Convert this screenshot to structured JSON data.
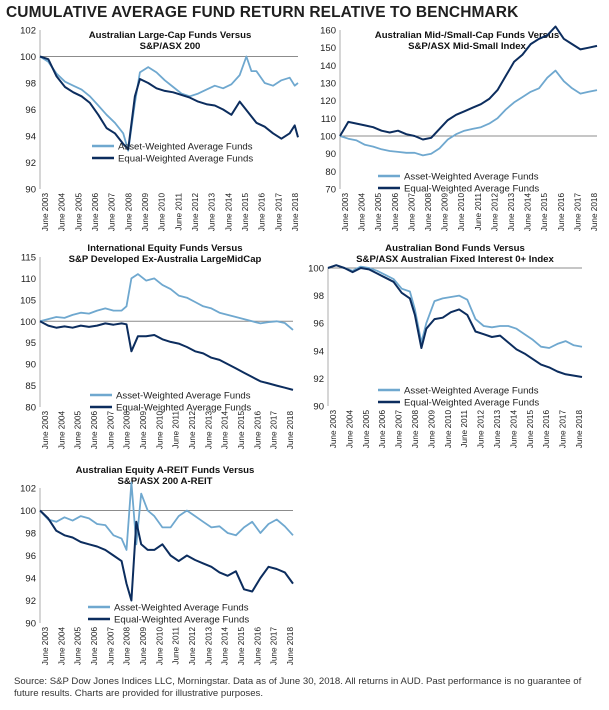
{
  "title": "CUMULATIVE AVERAGE FUND RETURN RELATIVE TO BENCHMARK",
  "footnote": "Source: S&P Dow Jones Indices LLC, Morningstar.  Data as of June 30, 2018.  All returns in AUD.  Past performance is no guarantee of future results.  Charts are provided for illustrative purposes.",
  "colors": {
    "asset": "#6fa8cf",
    "equal": "#0c2d5e",
    "baseline": "#8c8c8c"
  },
  "chart_data": [
    {
      "type": "line",
      "title_lines": [
        "Australian Large-Cap Funds Versus",
        "S&P/ASX 200"
      ],
      "ylim": [
        90,
        102
      ],
      "yticks": [
        90,
        92,
        94,
        96,
        98,
        100,
        102
      ],
      "baseline": 100,
      "xlim": [
        2003,
        2018.5
      ],
      "xticks": [
        "June 2003",
        "June 2004",
        "June 2005",
        "June 2006",
        "June 2007",
        "June 2008",
        "June 2009",
        "June 2010",
        "June 2011",
        "June 2012",
        "June 2013",
        "June 2014",
        "June 2015",
        "June 2016",
        "June 2017",
        "June 2018"
      ],
      "legend": "bottom-left",
      "series": [
        {
          "name": "Asset-Weighted Average Funds",
          "color_key": "asset",
          "x": [
            2003,
            2003.5,
            2004,
            2004.5,
            2005,
            2005.5,
            2006,
            2006.5,
            2007,
            2007.5,
            2008,
            2008.3,
            2008.7,
            2009,
            2009.5,
            2010,
            2010.5,
            2011,
            2011.5,
            2012,
            2012.5,
            2013,
            2013.5,
            2014,
            2014.5,
            2015,
            2015.4,
            2015.7,
            2016,
            2016.5,
            2017,
            2017.5,
            2018,
            2018.3,
            2018.5
          ],
          "y": [
            100,
            99.6,
            98.7,
            98.1,
            97.8,
            97.5,
            97.0,
            96.3,
            95.6,
            95.0,
            94.2,
            92.9,
            96.5,
            98.8,
            99.2,
            98.8,
            98.2,
            97.7,
            97.2,
            97.0,
            97.2,
            97.5,
            97.8,
            97.6,
            97.9,
            98.6,
            100.0,
            98.9,
            98.9,
            98.0,
            97.8,
            98.2,
            98.4,
            97.8,
            98.0
          ]
        },
        {
          "name": "Equal-Weighted Average Funds",
          "color_key": "equal",
          "x": [
            2003,
            2003.5,
            2004,
            2004.5,
            2005,
            2005.5,
            2006,
            2006.5,
            2007,
            2007.5,
            2008,
            2008.3,
            2008.7,
            2009,
            2009.5,
            2010,
            2010.5,
            2011,
            2011.5,
            2012,
            2012.5,
            2013,
            2013.5,
            2014,
            2014.5,
            2015,
            2015.5,
            2016,
            2016.5,
            2017,
            2017.5,
            2018,
            2018.3,
            2018.5
          ],
          "y": [
            100,
            99.8,
            98.5,
            97.7,
            97.3,
            97.0,
            96.5,
            95.6,
            94.6,
            94.2,
            93.4,
            93.0,
            97.0,
            98.3,
            98.0,
            97.6,
            97.4,
            97.3,
            97.1,
            96.9,
            96.6,
            96.4,
            96.3,
            96.0,
            95.6,
            96.6,
            95.8,
            95.0,
            94.7,
            94.2,
            93.8,
            94.2,
            94.8,
            93.9
          ]
        }
      ]
    },
    {
      "type": "line",
      "title_lines": [
        "Australian Mid-/Small-Cap Funds Versus",
        "S&P/ASX Mid-Small Index"
      ],
      "ylim": [
        70,
        160
      ],
      "yticks": [
        70,
        80,
        90,
        100,
        110,
        120,
        130,
        140,
        150,
        160
      ],
      "baseline": 100,
      "xlim": [
        2003,
        2018.5
      ],
      "xticks": [
        "June 2003",
        "June 2004",
        "June 2005",
        "June 2006",
        "June 2007",
        "June 2008",
        "June 2009",
        "June 2010",
        "June 2011",
        "June 2012",
        "June 2013",
        "June 2014",
        "June 2015",
        "June 2016",
        "June 2017",
        "June 2018"
      ],
      "legend": "bottom-center",
      "series": [
        {
          "name": "Asset-Weighted Average Funds",
          "color_key": "asset",
          "x": [
            2003,
            2003.5,
            2004,
            2004.5,
            2005,
            2005.5,
            2006,
            2006.5,
            2007,
            2007.5,
            2008,
            2008.5,
            2009,
            2009.5,
            2010,
            2010.5,
            2011,
            2011.5,
            2012,
            2012.5,
            2013,
            2013.5,
            2014,
            2014.5,
            2015,
            2015.5,
            2016,
            2016.5,
            2017,
            2017.5,
            2018,
            2018.5
          ],
          "y": [
            100,
            98.5,
            97.5,
            95,
            94,
            92.5,
            91.5,
            91,
            90.5,
            90.5,
            89,
            90,
            93,
            98,
            101,
            103,
            104,
            105,
            107,
            110,
            115,
            119,
            122,
            125,
            127,
            133,
            137,
            131,
            127,
            124,
            125,
            126
          ]
        },
        {
          "name": "Equal-Weighted Average Funds",
          "color_key": "equal",
          "x": [
            2003,
            2003.5,
            2004,
            2004.5,
            2005,
            2005.5,
            2006,
            2006.5,
            2007,
            2007.5,
            2008,
            2008.5,
            2009,
            2009.5,
            2010,
            2010.5,
            2011,
            2011.5,
            2012,
            2012.5,
            2013,
            2013.5,
            2014,
            2014.5,
            2015,
            2015.5,
            2016,
            2016.5,
            2017,
            2017.5,
            2018,
            2018.5
          ],
          "y": [
            100,
            108,
            107,
            106,
            105,
            103,
            102,
            103,
            101,
            100,
            98,
            99,
            104,
            109,
            112,
            114,
            116,
            118,
            121,
            126,
            134,
            142,
            146,
            152,
            155,
            157,
            162,
            155,
            152,
            149,
            150,
            151
          ]
        }
      ]
    },
    {
      "type": "line",
      "title_lines": [
        "International Equity Funds Versus",
        "S&P Developed Ex-Australia LargeMidCap"
      ],
      "ylim": [
        80,
        115
      ],
      "yticks": [
        80,
        85,
        90,
        95,
        100,
        105,
        110,
        115
      ],
      "baseline": 100,
      "xlim": [
        2003,
        2018.5
      ],
      "xticks": [
        "June 2003",
        "June 2004",
        "June 2005",
        "June 2006",
        "June 2007",
        "June 2008",
        "June 2009",
        "June 2010",
        "June 2011",
        "June 2012",
        "June 2013",
        "June 2014",
        "June 2015",
        "June 2016",
        "June 2017",
        "June 2018"
      ],
      "legend": "bottom-center",
      "series": [
        {
          "name": "Asset-Weighted Average Funds",
          "color_key": "asset",
          "x": [
            2003,
            2003.5,
            2004,
            2004.5,
            2005,
            2005.5,
            2006,
            2006.5,
            2007,
            2007.5,
            2008,
            2008.3,
            2008.6,
            2009,
            2009.5,
            2010,
            2010.5,
            2011,
            2011.5,
            2012,
            2012.5,
            2013,
            2013.5,
            2014,
            2014.5,
            2015,
            2015.5,
            2016,
            2016.5,
            2017,
            2017.5,
            2018,
            2018.5
          ],
          "y": [
            100,
            100.5,
            101,
            100.8,
            101.5,
            102,
            101.8,
            102.5,
            103,
            102.5,
            102.5,
            103.5,
            110,
            111,
            109.5,
            110,
            108.5,
            107.5,
            106,
            105.5,
            104.5,
            103.5,
            103,
            102,
            101.5,
            101,
            100.5,
            100,
            99.5,
            99.8,
            100,
            99.6,
            98
          ]
        },
        {
          "name": "Equal-Weighted Average Funds",
          "color_key": "equal",
          "x": [
            2003,
            2003.5,
            2004,
            2004.5,
            2005,
            2005.5,
            2006,
            2006.5,
            2007,
            2007.5,
            2008,
            2008.3,
            2008.6,
            2009,
            2009.5,
            2010,
            2010.5,
            2011,
            2011.5,
            2012,
            2012.5,
            2013,
            2013.5,
            2014,
            2014.5,
            2015,
            2015.5,
            2016,
            2016.5,
            2017,
            2017.5,
            2018,
            2018.5
          ],
          "y": [
            100,
            99,
            98.5,
            98.8,
            98.5,
            99,
            98.7,
            99,
            99.5,
            99.2,
            99.5,
            99.3,
            93,
            96.5,
            96.5,
            96.8,
            95.8,
            95.2,
            94.8,
            94,
            93,
            92.5,
            91.5,
            91,
            90,
            89,
            88,
            87,
            86,
            85.5,
            85,
            84.5,
            84
          ]
        }
      ]
    },
    {
      "type": "line",
      "title_lines": [
        "Australian Bond Funds Versus",
        "S&P/ASX Australian Fixed Interest 0+ Index"
      ],
      "ylim": [
        90,
        100
      ],
      "yticks": [
        90,
        92,
        94,
        96,
        98,
        100
      ],
      "baseline": 100,
      "xlim": [
        2003,
        2018.5
      ],
      "xticks": [
        "June 2003",
        "June 2004",
        "June 2005",
        "June 2006",
        "June 2007",
        "June 2008",
        "June 2009",
        "June 2010",
        "June 2011",
        "June 2012",
        "June 2013",
        "June 2014",
        "June 2015",
        "June 2016",
        "June 2017",
        "June 2018"
      ],
      "legend": "bottom-right",
      "series": [
        {
          "name": "Asset-Weighted Average Funds",
          "color_key": "asset",
          "x": [
            2003,
            2003.5,
            2004,
            2004.5,
            2005,
            2005.5,
            2006,
            2006.5,
            2007,
            2007.5,
            2008,
            2008.3,
            2008.7,
            2009,
            2009.5,
            2010,
            2010.5,
            2011,
            2011.5,
            2012,
            2012.5,
            2013,
            2013.5,
            2014,
            2014.5,
            2015,
            2015.5,
            2016,
            2016.5,
            2017,
            2017.5,
            2018,
            2018.5
          ],
          "y": [
            100,
            100.2,
            100,
            99.8,
            100.1,
            100,
            99.8,
            99.5,
            99.2,
            98.5,
            98.3,
            97.0,
            94.6,
            96,
            97.6,
            97.8,
            97.9,
            98,
            97.7,
            96.3,
            95.8,
            95.7,
            95.8,
            95.8,
            95.6,
            95.2,
            94.8,
            94.3,
            94.2,
            94.5,
            94.7,
            94.4,
            94.3
          ]
        },
        {
          "name": "Equal-Weighted Average Funds",
          "color_key": "equal",
          "x": [
            2003,
            2003.5,
            2004,
            2004.5,
            2005,
            2005.5,
            2006,
            2006.5,
            2007,
            2007.5,
            2008,
            2008.3,
            2008.7,
            2009,
            2009.5,
            2010,
            2010.5,
            2011,
            2011.5,
            2012,
            2012.5,
            2013,
            2013.5,
            2014,
            2014.5,
            2015,
            2015.5,
            2016,
            2016.5,
            2017,
            2017.5,
            2018,
            2018.5
          ],
          "y": [
            100,
            100.2,
            100,
            99.7,
            100,
            99.9,
            99.6,
            99.3,
            99,
            98.2,
            97.8,
            96.6,
            94.2,
            95.6,
            96.3,
            96.4,
            96.8,
            97,
            96.6,
            95.4,
            95.2,
            95,
            95.1,
            94.6,
            94.1,
            93.8,
            93.4,
            93,
            92.8,
            92.5,
            92.3,
            92.2,
            92.1
          ]
        }
      ]
    },
    {
      "type": "line",
      "title_lines": [
        "Australian Equity A-REIT Funds Versus",
        "S&P/ASX 200 A-REIT"
      ],
      "ylim": [
        90,
        102
      ],
      "yticks": [
        90,
        92,
        94,
        96,
        98,
        100,
        102
      ],
      "baseline": 100,
      "xlim": [
        2003,
        2018.5
      ],
      "xticks": [
        "June 2003",
        "June 2004",
        "June 2005",
        "June 2006",
        "June 2007",
        "June 2008",
        "June 2009",
        "June 2010",
        "June 2011",
        "June 2012",
        "June 2013",
        "June 2014",
        "June 2015",
        "June 2016",
        "June 2017",
        "June 2018"
      ],
      "legend": "bottom-center",
      "series": [
        {
          "name": "Asset-Weighted Average Funds",
          "color_key": "asset",
          "x": [
            2003,
            2003.5,
            2004,
            2004.5,
            2005,
            2005.5,
            2006,
            2006.5,
            2007,
            2007.5,
            2008,
            2008.3,
            2008.6,
            2008.9,
            2009.2,
            2009.6,
            2010,
            2010.5,
            2011,
            2011.5,
            2012,
            2012.5,
            2013,
            2013.5,
            2014,
            2014.5,
            2015,
            2015.5,
            2016,
            2016.5,
            2017,
            2017.5,
            2018,
            2018.5
          ],
          "y": [
            100,
            99.2,
            99,
            99.4,
            99.1,
            99.5,
            99.3,
            98.8,
            98.7,
            97.8,
            97.5,
            96.5,
            102.5,
            97.0,
            101.5,
            100.0,
            99.5,
            98.5,
            98.5,
            99.5,
            100,
            99.5,
            99,
            98.5,
            98.6,
            98,
            97.8,
            98.5,
            99,
            98,
            98.8,
            99.2,
            98.6,
            97.8
          ]
        },
        {
          "name": "Equal-Weighted Average Funds",
          "color_key": "equal",
          "x": [
            2003,
            2003.5,
            2004,
            2004.5,
            2005,
            2005.5,
            2006,
            2006.5,
            2007,
            2007.5,
            2008,
            2008.3,
            2008.6,
            2008.9,
            2009.2,
            2009.6,
            2010,
            2010.5,
            2011,
            2011.5,
            2012,
            2012.5,
            2013,
            2013.5,
            2014,
            2014.5,
            2015,
            2015.5,
            2016,
            2016.5,
            2017,
            2017.5,
            2018,
            2018.5
          ],
          "y": [
            100,
            99.3,
            98.2,
            97.8,
            97.6,
            97.2,
            97.0,
            96.8,
            96.5,
            96.0,
            95.5,
            93.5,
            92.0,
            99.0,
            97.0,
            96.5,
            96.5,
            97.0,
            96.0,
            95.5,
            96,
            95.6,
            95.3,
            95.0,
            94.5,
            94.2,
            94.6,
            93.0,
            92.8,
            94,
            95,
            94.8,
            94.5,
            93.5
          ]
        }
      ]
    }
  ]
}
